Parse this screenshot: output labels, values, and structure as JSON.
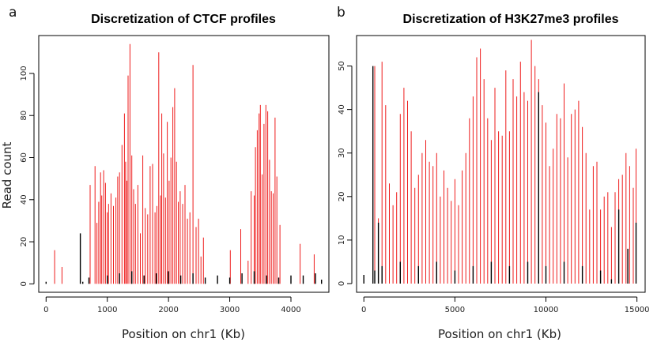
{
  "figure": {
    "panels": [
      {
        "letter": "a",
        "title": "Discretization of CTCF profiles",
        "xlabel": "Position on chr1 (Kb)",
        "ylabel": "Read count"
      },
      {
        "letter": "b",
        "title": "Discretization of H3K27me3 profiles",
        "xlabel": "Position on chr1 (Kb)",
        "ylabel": ""
      }
    ]
  },
  "colors": {
    "raw_signal": "#ee1c1c",
    "discretized": "#000000"
  },
  "chart_data": [
    {
      "type": "bar",
      "title": "Discretization of CTCF profiles",
      "xlabel": "Position on chr1 (Kb)",
      "ylabel": "Read count",
      "xlim": [
        -120,
        4620
      ],
      "ylim": [
        -4,
        118
      ],
      "xticks": [
        0,
        1000,
        2000,
        3000,
        4000
      ],
      "yticks": [
        0,
        20,
        40,
        60,
        80,
        100
      ],
      "series": [
        {
          "color": "#ee1c1c",
          "x": [
            140,
            260,
            720,
            800,
            830,
            860,
            890,
            910,
            940,
            970,
            1000,
            1020,
            1060,
            1100,
            1140,
            1170,
            1200,
            1240,
            1280,
            1300,
            1320,
            1340,
            1370,
            1400,
            1430,
            1460,
            1500,
            1540,
            1580,
            1620,
            1660,
            1700,
            1740,
            1780,
            1810,
            1840,
            1870,
            1890,
            1920,
            1950,
            1980,
            2010,
            2040,
            2070,
            2100,
            2130,
            2160,
            2190,
            2230,
            2270,
            2310,
            2350,
            2400,
            2450,
            2490,
            2530,
            2570,
            3010,
            3180,
            3300,
            3350,
            3400,
            3420,
            3450,
            3480,
            3500,
            3530,
            3560,
            3590,
            3620,
            3650,
            3680,
            3710,
            3740,
            3770,
            3820,
            4150,
            4380
          ],
          "values": [
            16,
            8,
            47,
            56,
            29,
            39,
            53,
            42,
            54,
            48,
            34,
            38,
            43,
            37,
            41,
            51,
            53,
            66,
            81,
            58,
            49,
            99,
            114,
            61,
            45,
            38,
            47,
            24,
            61,
            36,
            33,
            56,
            57,
            34,
            37,
            110,
            42,
            81,
            62,
            41,
            77,
            49,
            60,
            84,
            93,
            58,
            39,
            44,
            38,
            47,
            31,
            34,
            104,
            27,
            31,
            13,
            22,
            16,
            26,
            11,
            44,
            42,
            65,
            73,
            81,
            85,
            52,
            76,
            85,
            82,
            59,
            44,
            43,
            79,
            51,
            28,
            19,
            14
          ]
        },
        {
          "color": "#000000",
          "x": [
            0,
            200,
            560,
            600,
            700,
            1000,
            1200,
            1400,
            1600,
            1800,
            2000,
            2200,
            2400,
            2600,
            2800,
            3000,
            3200,
            3400,
            3600,
            3800,
            3900,
            4000,
            4200,
            4400,
            4500
          ],
          "values": [
            1,
            0,
            24,
            1,
            3,
            4,
            5,
            6,
            4,
            5,
            6,
            4,
            5,
            3,
            4,
            3,
            5,
            6,
            4,
            3,
            0,
            4,
            4,
            5,
            2
          ]
        }
      ]
    },
    {
      "type": "bar",
      "title": "Discretization of H3K27me3 profiles",
      "xlabel": "Position on chr1 (Kb)",
      "ylabel": "",
      "xlim": [
        -400,
        15450
      ],
      "ylim": [
        -2,
        57
      ],
      "xticks": [
        0,
        5000,
        10000,
        15000
      ],
      "yticks": [
        0,
        10,
        20,
        30,
        40,
        50
      ],
      "series": [
        {
          "color": "#ee1c1c",
          "x": [
            600,
            800,
            1000,
            1200,
            1400,
            1600,
            1800,
            2000,
            2200,
            2400,
            2600,
            2800,
            3000,
            3200,
            3400,
            3600,
            3800,
            4000,
            4200,
            4400,
            4600,
            4800,
            5000,
            5200,
            5400,
            5600,
            5800,
            6000,
            6200,
            6400,
            6600,
            6800,
            7000,
            7200,
            7400,
            7600,
            7800,
            8000,
            8200,
            8400,
            8600,
            8800,
            9000,
            9200,
            9400,
            9600,
            9800,
            10000,
            10200,
            10400,
            10600,
            10800,
            11000,
            11200,
            11400,
            11600,
            11800,
            12000,
            12200,
            12400,
            12600,
            12800,
            13000,
            13200,
            13400,
            13600,
            13800,
            14000,
            14200,
            14400,
            14600,
            14800,
            14950
          ],
          "values": [
            50,
            15,
            51,
            41,
            23,
            18,
            21,
            39,
            45,
            42,
            35,
            22,
            25,
            30,
            33,
            28,
            27,
            30,
            20,
            26,
            22,
            19,
            24,
            18,
            26,
            30,
            38,
            43,
            52,
            54,
            47,
            38,
            33,
            45,
            35,
            34,
            49,
            35,
            47,
            43,
            51,
            44,
            42,
            56,
            50,
            47,
            41,
            37,
            27,
            31,
            39,
            38,
            46,
            29,
            39,
            40,
            42,
            36,
            30,
            17,
            27,
            28,
            17,
            20,
            21,
            13,
            21,
            24,
            25,
            30,
            27,
            22,
            31
          ]
        },
        {
          "color": "#000000",
          "x": [
            0,
            300,
            500,
            600,
            800,
            1000,
            2000,
            3000,
            4000,
            5000,
            6000,
            7000,
            8000,
            9000,
            9600,
            10000,
            11000,
            12000,
            13000,
            13600,
            14000,
            14500,
            14950
          ],
          "values": [
            2,
            0,
            50,
            3,
            14,
            4,
            5,
            4,
            5,
            3,
            4,
            5,
            4,
            5,
            44,
            4,
            5,
            4,
            3,
            1,
            17,
            8,
            14
          ]
        }
      ]
    }
  ]
}
